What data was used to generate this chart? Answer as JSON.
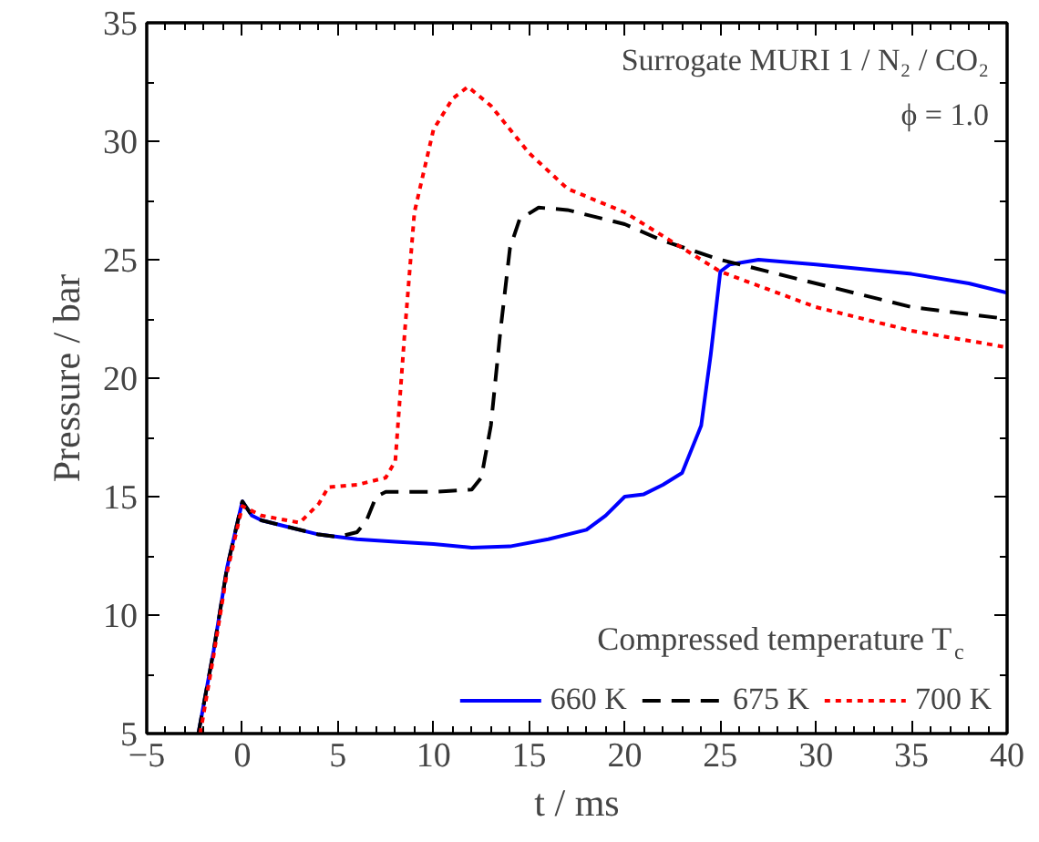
{
  "chart_data": {
    "type": "line",
    "xlabel": "t / ms",
    "ylabel": "Pressure / bar",
    "legend_title": "Compressed temperature T$_{c}$",
    "annotations": [
      "Surrogate MURI 1 / N₂ / CO₂",
      "ϕ = 1.0"
    ],
    "xlim": [
      -5,
      40
    ],
    "xticks": [
      -5,
      0,
      5,
      10,
      15,
      20,
      25,
      30,
      35,
      40
    ],
    "ylim": [
      5,
      35
    ],
    "yticks": [
      5,
      10,
      15,
      20,
      25,
      30,
      35
    ],
    "grid": false,
    "legend": "bottom right",
    "series": [
      {
        "name": "660 K",
        "color": "#0000ff",
        "line_style": "solid",
        "x": [
          -2.3,
          -1.5,
          -0.8,
          0,
          0.5,
          1,
          2,
          4,
          6,
          8,
          10,
          12,
          14,
          16,
          18,
          19,
          20,
          21,
          22,
          23,
          24,
          24.5,
          25,
          25.5,
          27,
          30,
          35,
          38,
          40
        ],
        "values": [
          5,
          8.5,
          12,
          14.8,
          14.2,
          14,
          13.8,
          13.4,
          13.2,
          13.1,
          13.0,
          12.85,
          12.9,
          13.2,
          13.6,
          14.2,
          15.0,
          15.1,
          15.5,
          16,
          18,
          21,
          24.5,
          24.8,
          25,
          24.8,
          24.4,
          24.0,
          23.6
        ]
      },
      {
        "name": "675 K",
        "color": "#000000",
        "line_style": "dashed",
        "x": [
          -2.3,
          -1.5,
          -0.8,
          0,
          0.5,
          1,
          2,
          4,
          5,
          6,
          6.5,
          7,
          7.5,
          10,
          12,
          12.5,
          13,
          13.5,
          14,
          14.5,
          15.5,
          17,
          20,
          22,
          25,
          30,
          35,
          40
        ],
        "values": [
          5,
          8.5,
          12,
          14.8,
          14.2,
          14,
          13.8,
          13.4,
          13.3,
          13.5,
          14,
          15,
          15.2,
          15.2,
          15.3,
          15.8,
          18,
          22,
          25.5,
          26.7,
          27.2,
          27.1,
          26.5,
          25.8,
          25,
          24,
          23,
          22.5
        ]
      },
      {
        "name": "700 K",
        "color": "#ff0000",
        "line_style": "dotted",
        "x": [
          -2.2,
          -1.5,
          -0.8,
          0,
          1,
          3,
          4,
          4.5,
          6,
          7.5,
          8,
          8.5,
          9,
          10,
          11,
          11.8,
          13,
          15,
          17,
          20,
          22,
          24,
          25,
          30,
          35,
          40
        ],
        "values": [
          5,
          8.3,
          11.8,
          14.6,
          14.2,
          13.9,
          14.7,
          15.4,
          15.5,
          15.8,
          16.5,
          22,
          27,
          30.5,
          31.8,
          32.3,
          31.5,
          29.5,
          28,
          27,
          26,
          25,
          24.5,
          23,
          22,
          21.3
        ]
      }
    ]
  }
}
